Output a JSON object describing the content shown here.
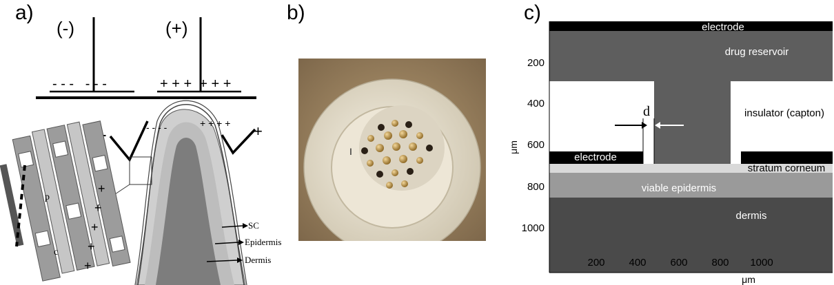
{
  "panels": {
    "a": {
      "label": "a)",
      "top_neg_label": "(-)",
      "top_pos_label": "(+)",
      "top_neg_charges": "- - -   - - -",
      "top_pos_charges": "+ + +  + + +",
      "layer_labels": [
        "SC",
        "Epidermis",
        "Dermis"
      ],
      "stratum_letters": [
        "c",
        "p"
      ]
    },
    "b": {
      "label": "b)"
    },
    "c": {
      "label": "c)",
      "y_axis_label": "μm",
      "x_axis_label": "μm",
      "y_ticks": [
        "200",
        "400",
        "600",
        "800",
        "1000"
      ],
      "x_ticks": [
        "200",
        "400",
        "600",
        "800",
        "1000"
      ],
      "regions": {
        "electrode_top": "electrode",
        "drug_reservoir": "drug reservoir",
        "insulator": "insulator (capton)",
        "electrode_left": "electrode",
        "stratum_corneum": "stratum corneum",
        "viable_epidermis": "viable epidermis",
        "dermis": "dermis",
        "gap_label": "d"
      },
      "colors": {
        "electrode": "#000000",
        "reservoir": "#5e5e5e",
        "insulator": "#ffffff",
        "stratum_corneum": "#d9d9d9",
        "viable_epidermis": "#9a9a9a",
        "dermis": "#4a4a4a"
      }
    }
  }
}
